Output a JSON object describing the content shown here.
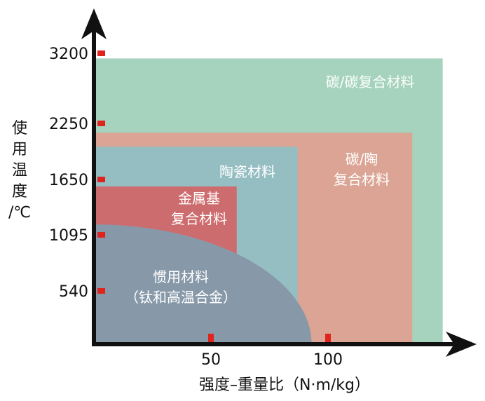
{
  "chart_data": {
    "type": "area",
    "title": "",
    "xlabel": "强度–重量比（N·m/kg）",
    "ylabel": [
      "使",
      "用",
      "温",
      "度",
      "/℃"
    ],
    "xticks": [
      50,
      100
    ],
    "yticks": [
      "540",
      "1095",
      "1650",
      "2250",
      "3200"
    ],
    "grid": false,
    "legend": "none",
    "regions": [
      {
        "name_lines": [
          "碳/碳复合材料"
        ],
        "shape": "rect",
        "x_max": 149,
        "y_max": 3130,
        "color": "#a5d3bd",
        "label_anchor": "top-right"
      },
      {
        "name_lines": [
          "碳/陶",
          "复合材料"
        ],
        "shape": "rect",
        "x_max": 136,
        "y_max": 2150,
        "color": "#dba494",
        "label_anchor": "top-right"
      },
      {
        "name_lines": [
          "陶瓷材料"
        ],
        "shape": "rect",
        "x_max": 87,
        "y_max": 2000,
        "color": "#95bec3",
        "label_anchor": "top-right"
      },
      {
        "name_lines": [
          "金属基",
          "复合材料"
        ],
        "shape": "rect",
        "x_max": 61,
        "y_max": 1580,
        "color": "#cd6c6e",
        "label_anchor": "center"
      },
      {
        "name_lines": [
          "惯用材料",
          "（钛和高温合金）"
        ],
        "shape": "quarter-ellipse",
        "x_max": 93,
        "y_max": 1200,
        "color": "#8799a9",
        "label_anchor": "center"
      }
    ]
  },
  "colors": {
    "axis": "#111111",
    "tick_marker": "#e0231c"
  }
}
